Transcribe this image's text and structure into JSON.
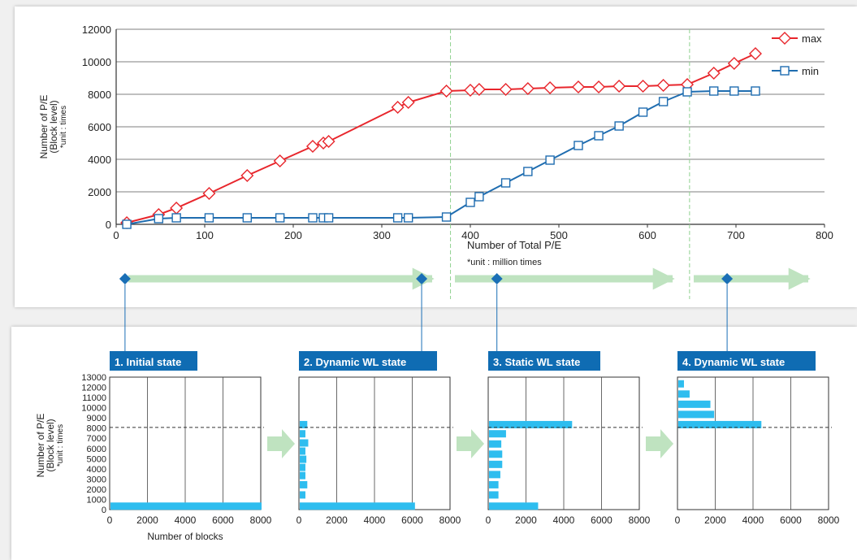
{
  "colors": {
    "max_series": "#e8262c",
    "min_series": "#1f6db0",
    "phase_arrow": "#bfe3c0",
    "marker_blue": "#1a6fb6",
    "histogram_bar": "#2ebdef",
    "state_label_bg": "#0f6cb3",
    "phase_divider": "#8fd18f"
  },
  "chart_data": [
    {
      "type": "line",
      "xlabel": "Number of Total P/E",
      "xunit": "*unit : million times",
      "ylabel_lines": [
        "Number of P/E",
        "(Block level)"
      ],
      "yunit": "*unit : times",
      "xlim": [
        0,
        800
      ],
      "ylim": [
        0,
        12000
      ],
      "xticks": [
        0,
        100,
        200,
        300,
        400,
        500,
        600,
        700,
        800
      ],
      "yticks": [
        0,
        2000,
        4000,
        6000,
        8000,
        10000,
        12000
      ],
      "grid": "horizontal",
      "legend": "top-right",
      "phase_boundaries": [
        373,
        643
      ],
      "state_markers_x": [
        10,
        345,
        430,
        690
      ],
      "series": [
        {
          "name": "max",
          "marker": "diamond",
          "x": [
            12,
            48,
            68,
            105,
            148,
            185,
            222,
            234,
            240,
            318,
            330,
            373,
            400,
            410,
            440,
            465,
            490,
            522,
            545,
            568,
            595,
            618,
            645,
            675,
            698,
            722
          ],
          "y": [
            100,
            600,
            1000,
            1900,
            3000,
            3900,
            4800,
            5000,
            5100,
            7200,
            7500,
            8200,
            8250,
            8300,
            8300,
            8350,
            8400,
            8450,
            8450,
            8500,
            8500,
            8550,
            8600,
            9300,
            9900,
            10500
          ]
        },
        {
          "name": "min",
          "marker": "square",
          "x": [
            12,
            48,
            68,
            105,
            148,
            185,
            222,
            234,
            240,
            318,
            330,
            373,
            400,
            410,
            440,
            465,
            490,
            522,
            545,
            568,
            595,
            618,
            645,
            675,
            698,
            722
          ],
          "y": [
            0,
            350,
            400,
            400,
            400,
            400,
            400,
            400,
            400,
            400,
            400,
            450,
            1350,
            1700,
            2550,
            3250,
            3950,
            4850,
            5450,
            6050,
            6900,
            7550,
            8150,
            8200,
            8200,
            8200
          ]
        }
      ]
    },
    {
      "type": "bar",
      "orientation": "horizontal",
      "title": "1. Initial state",
      "xlabel": "Number of blocks",
      "ylabel_lines": [
        "Number of P/E",
        "(Block level)"
      ],
      "yunit": "*unit : times",
      "xlim": [
        0,
        8000
      ],
      "ylim": [
        0,
        13000
      ],
      "xticks": [
        0,
        2000,
        4000,
        6000,
        8000
      ],
      "yticks": [
        0,
        1000,
        2000,
        3000,
        4000,
        5000,
        6000,
        7000,
        8000,
        9000,
        10000,
        11000,
        12000,
        13000
      ],
      "reference_line_y": 8300,
      "bars": [
        {
          "y": 300,
          "value": 8000
        }
      ]
    },
    {
      "type": "bar",
      "orientation": "horizontal",
      "title": "2. Dynamic WL state",
      "xlim": [
        0,
        8000
      ],
      "ylim": [
        0,
        13000
      ],
      "xticks": [
        0,
        2000,
        4000,
        6000,
        8000
      ],
      "reference_line_y": 8300,
      "bars": [
        {
          "y": 300,
          "value": 6100
        },
        {
          "y": 1400,
          "value": 300
        },
        {
          "y": 2400,
          "value": 400
        },
        {
          "y": 3300,
          "value": 300
        },
        {
          "y": 4100,
          "value": 300
        },
        {
          "y": 4900,
          "value": 350
        },
        {
          "y": 5700,
          "value": 300
        },
        {
          "y": 6500,
          "value": 450
        },
        {
          "y": 7400,
          "value": 300
        },
        {
          "y": 8300,
          "value": 400
        }
      ]
    },
    {
      "type": "bar",
      "orientation": "horizontal",
      "title": "3. Static WL state",
      "xlim": [
        0,
        8000
      ],
      "ylim": [
        0,
        13000
      ],
      "xticks": [
        0,
        2000,
        4000,
        6000,
        8000
      ],
      "reference_line_y": 8300,
      "bars": [
        {
          "y": 300,
          "value": 2600
        },
        {
          "y": 1400,
          "value": 500
        },
        {
          "y": 2400,
          "value": 500
        },
        {
          "y": 3400,
          "value": 600
        },
        {
          "y": 4400,
          "value": 700
        },
        {
          "y": 5400,
          "value": 700
        },
        {
          "y": 6400,
          "value": 650
        },
        {
          "y": 7400,
          "value": 900
        },
        {
          "y": 8300,
          "value": 4400
        }
      ]
    },
    {
      "type": "bar",
      "orientation": "horizontal",
      "title": "4. Dynamic WL state",
      "xlim": [
        0,
        8000
      ],
      "ylim": [
        0,
        13000
      ],
      "xticks": [
        0,
        2000,
        4000,
        6000,
        8000
      ],
      "reference_line_y": 8300,
      "bars": [
        {
          "y": 8300,
          "value": 4400
        },
        {
          "y": 9300,
          "value": 1900
        },
        {
          "y": 10300,
          "value": 1700
        },
        {
          "y": 11300,
          "value": 600
        },
        {
          "y": 12300,
          "value": 300
        }
      ]
    }
  ]
}
